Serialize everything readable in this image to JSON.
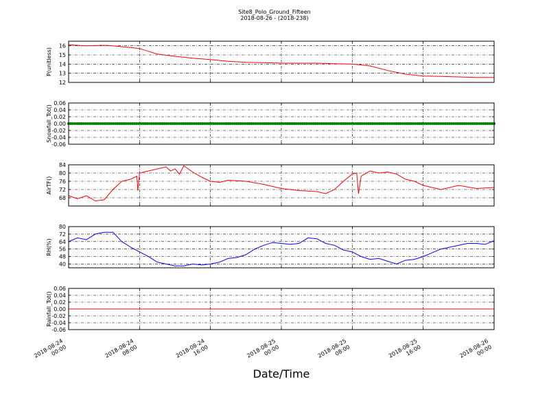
{
  "figure": {
    "title": "Site8_Polo_Ground_Fifteen",
    "subtitle": "2018-08-26 - (2018-238)",
    "xlabel": "Date/Time"
  },
  "chart_data": [
    {
      "type": "line",
      "ylabel": "P(unitless)",
      "ylim": [
        12,
        16.5
      ],
      "yticks": [
        "12",
        "13",
        "14",
        "15",
        "16"
      ],
      "yticks_values": [
        12,
        13,
        14,
        15,
        16
      ],
      "grid": true,
      "color": "#ff0000",
      "series": [
        {
          "x": [
            0,
            2,
            4,
            5,
            6,
            7,
            8,
            9,
            10,
            12,
            14,
            16,
            18,
            20,
            22,
            24,
            26,
            28,
            30,
            32,
            34,
            36,
            38,
            40,
            42,
            44,
            46,
            48
          ],
          "values": [
            16.1,
            16.0,
            16.05,
            16.0,
            15.9,
            15.8,
            15.7,
            15.4,
            15.1,
            14.85,
            14.65,
            14.5,
            14.3,
            14.2,
            14.15,
            14.1,
            14.1,
            14.1,
            14.05,
            14.0,
            13.8,
            13.3,
            12.9,
            12.7,
            12.65,
            12.6,
            12.55,
            12.55
          ]
        }
      ]
    },
    {
      "type": "line",
      "ylabel": "Snowfall_Tot()",
      "ylim": [
        -0.06,
        0.06
      ],
      "yticks": [
        "-0.06",
        "-0.04",
        "-0.02",
        "0.00",
        "0.02",
        "0.04",
        "0.06"
      ],
      "yticks_values": [
        -0.06,
        -0.04,
        -0.02,
        0.0,
        0.02,
        0.04,
        0.06
      ],
      "grid": true,
      "color": "#008000",
      "markers": true,
      "series": [
        {
          "x": [
            0,
            48
          ],
          "values": [
            0,
            0
          ]
        }
      ]
    },
    {
      "type": "line",
      "ylabel": "AirTF()",
      "ylim": [
        64,
        84
      ],
      "yticks": [
        "68",
        "72",
        "76",
        "80",
        "84"
      ],
      "yticks_values": [
        68,
        72,
        76,
        80,
        84
      ],
      "grid": true,
      "color": "#ff0000",
      "series": [
        {
          "x": [
            0,
            1,
            2,
            3,
            4,
            5,
            6,
            7,
            7.7,
            7.8,
            8,
            9,
            10,
            11,
            11.5,
            12,
            12.5,
            13,
            14,
            15,
            16,
            17,
            18,
            20,
            22,
            24,
            26,
            28,
            29,
            30,
            31,
            32,
            32.5,
            32.7,
            33,
            34,
            35,
            36,
            37,
            38,
            39,
            40,
            41,
            42,
            44,
            46,
            48
          ],
          "values": [
            69,
            67.5,
            69,
            66.5,
            67,
            72,
            76,
            77,
            78.5,
            71.5,
            80,
            81,
            82,
            83,
            81,
            82,
            79.5,
            83.5,
            80.5,
            78,
            76,
            75.5,
            76.5,
            76,
            74.5,
            72.5,
            71.5,
            71,
            70,
            72,
            76,
            79.5,
            80,
            70,
            78.5,
            81,
            80,
            80.5,
            79.5,
            77,
            76,
            74,
            73,
            72,
            74,
            72.5,
            73
          ]
        }
      ]
    },
    {
      "type": "line",
      "ylabel": "RH(%)",
      "ylim": [
        36,
        80
      ],
      "yticks": [
        "40",
        "48",
        "56",
        "64",
        "72",
        "80"
      ],
      "yticks_values": [
        40,
        48,
        56,
        64,
        72,
        80
      ],
      "grid": true,
      "color": "#0000ff",
      "series": [
        {
          "x": [
            0,
            1,
            2,
            3,
            4,
            5,
            6,
            7,
            8,
            9,
            10,
            11,
            12,
            13,
            14,
            15,
            16,
            17,
            18,
            19,
            20,
            21,
            22,
            23,
            24,
            25,
            26,
            27,
            28,
            29,
            30,
            31,
            32,
            33,
            34,
            35,
            36,
            37,
            38,
            39,
            40,
            41,
            42,
            43,
            44,
            45,
            46,
            47,
            48
          ],
          "values": [
            64,
            68,
            66,
            72,
            74,
            74,
            64,
            58,
            53,
            48,
            42,
            40,
            38,
            38,
            40,
            39,
            40,
            42,
            46,
            47,
            50,
            56,
            60,
            63,
            62,
            61,
            62,
            68,
            67,
            62,
            60,
            55,
            53,
            48,
            45,
            46,
            43,
            40,
            44,
            45,
            48,
            52,
            56,
            58,
            60,
            62,
            62,
            61,
            65
          ]
        }
      ]
    },
    {
      "type": "line",
      "ylabel": "Rainfall_Tot()",
      "ylim": [
        -0.06,
        0.06
      ],
      "yticks": [
        "-0.06",
        "-0.04",
        "-0.02",
        "0.00",
        "0.02",
        "0.04",
        "0.06"
      ],
      "yticks_values": [
        -0.06,
        -0.04,
        -0.02,
        0.0,
        0.02,
        0.04,
        0.06
      ],
      "grid": true,
      "color": "#ff0000",
      "series": [
        {
          "x": [
            0,
            48
          ],
          "values": [
            0,
            0
          ]
        }
      ]
    }
  ],
  "x_axis": {
    "range": [
      0,
      48
    ],
    "tick_values": [
      0,
      8,
      16,
      24,
      32,
      40,
      48
    ],
    "tick_labels": [
      [
        "2018-08-24",
        "00:00"
      ],
      [
        "2018-08-24",
        "08:00"
      ],
      [
        "2018-08-24",
        "16:00"
      ],
      [
        "2018-08-25",
        "00:00"
      ],
      [
        "2018-08-25",
        "08:00"
      ],
      [
        "2018-08-25",
        "16:00"
      ],
      [
        "2018-08-26",
        "00:00"
      ]
    ]
  }
}
